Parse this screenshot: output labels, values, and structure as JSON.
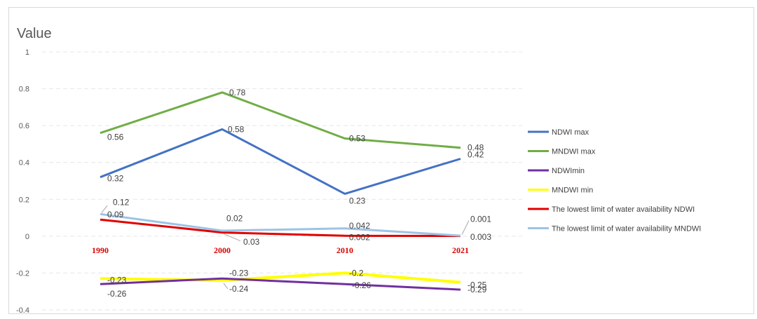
{
  "chart_data": {
    "type": "line",
    "title": "",
    "ylabel": "Value",
    "xlabel": "",
    "categories": [
      "1990",
      "2000",
      "2010",
      "2021"
    ],
    "y_ticks": [
      "1",
      "0.8",
      "0.6",
      "0.4",
      "0.2",
      "0",
      "-0.2",
      "-0.4"
    ],
    "ylim": [
      -0.4,
      1
    ],
    "grid": true,
    "legend_position": "right",
    "series": [
      {
        "name": "NDWI max",
        "values": [
          0.32,
          0.58,
          0.23,
          0.42
        ],
        "labels": [
          "0.32",
          "0.58",
          "0.23",
          "0.42"
        ],
        "color": "#4472c4"
      },
      {
        "name": "MNDWI max",
        "values": [
          0.56,
          0.78,
          0.53,
          0.48
        ],
        "labels": [
          "0.56",
          "0.78",
          "0.53",
          "0.48"
        ],
        "color": "#70ad47"
      },
      {
        "name": "NDWImin",
        "values": [
          -0.26,
          -0.23,
          -0.26,
          -0.29
        ],
        "labels": [
          "-0.26",
          "-0.23",
          "-0.26",
          "-0.29"
        ],
        "color": "#7030a0"
      },
      {
        "name": "MNDWI min",
        "values": [
          -0.23,
          -0.24,
          -0.2,
          -0.25
        ],
        "labels": [
          "-0.23",
          "-0.24",
          "-0.2",
          "-0.25"
        ],
        "color": "#ffff00"
      },
      {
        "name": "The lowest limit of water availability  NDWI",
        "values": [
          0.09,
          0.02,
          0.002,
          0.001
        ],
        "labels": [
          "0.09",
          "0.02",
          "0.002",
          "0.001"
        ],
        "color": "#e00000"
      },
      {
        "name": "The lowest limit of water availability  MNDWI",
        "values": [
          0.12,
          0.03,
          0.042,
          0.003
        ],
        "labels": [
          "0.12",
          "0.03",
          "0.042",
          "0.003"
        ],
        "color": "#9dc3e6"
      }
    ]
  }
}
